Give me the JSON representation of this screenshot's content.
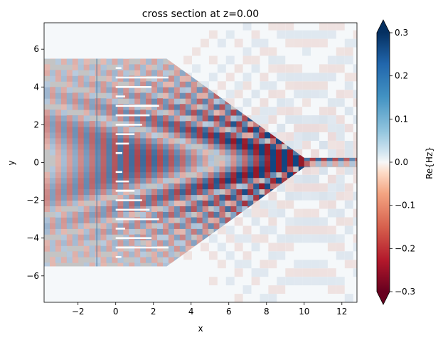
{
  "chart_data": {
    "type": "heatmap",
    "title": "cross section at z=0.00",
    "xlabel": "x",
    "ylabel": "y",
    "xlim": [
      -3.8,
      12.8
    ],
    "ylim": [
      -7.4,
      7.4
    ],
    "x_ticks": [
      -2,
      0,
      2,
      4,
      6,
      8,
      10,
      12
    ],
    "y_ticks": [
      -6,
      -4,
      -2,
      0,
      2,
      4,
      6
    ],
    "colorbar": {
      "label": "Re{Hz}",
      "range": [
        -0.3,
        0.3
      ],
      "ticks": [
        -0.3,
        -0.2,
        -0.1,
        0.0,
        0.1,
        0.2,
        0.3
      ],
      "extend": "both",
      "colormap": "RdBu"
    },
    "structure": {
      "slab": {
        "x": [
          -3.8,
          2.7
        ],
        "y": [
          -5.5,
          5.5
        ]
      },
      "taper": {
        "x": [
          2.7,
          10.0
        ],
        "y_wide": [
          -5.5,
          5.5
        ],
        "y_narrow": [
          -0.25,
          0.25
        ]
      },
      "waveguide": {
        "x": [
          10.0,
          12.8
        ],
        "y": [
          -0.25,
          0.25
        ]
      },
      "source_line_x": -1.0,
      "slits": [
        {
          "y": 5.0,
          "x": [
            0.0,
            0.3
          ]
        },
        {
          "y": 4.5,
          "x": [
            0.0,
            2.8
          ]
        },
        {
          "y": 4.0,
          "x": [
            0.0,
            1.9
          ]
        },
        {
          "y": 3.5,
          "x": [
            0.0,
            0.5
          ]
        },
        {
          "y": 3.0,
          "x": [
            0.0,
            2.3
          ]
        },
        {
          "y": 2.5,
          "x": [
            0.0,
            1.8
          ]
        },
        {
          "y": 2.0,
          "x": [
            0.0,
            1.4
          ]
        },
        {
          "y": 1.5,
          "x": [
            0.0,
            1.0
          ]
        },
        {
          "y": 1.0,
          "x": [
            0.0,
            0.7
          ]
        },
        {
          "y": 0.5,
          "x": [
            0.0,
            0.35
          ]
        },
        {
          "y": -0.5,
          "x": [
            0.0,
            0.35
          ]
        },
        {
          "y": -1.0,
          "x": [
            0.0,
            0.7
          ]
        },
        {
          "y": -1.5,
          "x": [
            0.0,
            1.0
          ]
        },
        {
          "y": -2.0,
          "x": [
            0.0,
            1.4
          ]
        },
        {
          "y": -2.5,
          "x": [
            0.0,
            1.8
          ]
        },
        {
          "y": -3.0,
          "x": [
            0.0,
            2.3
          ]
        },
        {
          "y": -3.5,
          "x": [
            0.0,
            0.5
          ]
        },
        {
          "y": -4.0,
          "x": [
            0.0,
            1.9
          ]
        },
        {
          "y": -4.5,
          "x": [
            0.0,
            2.8
          ]
        },
        {
          "y": -5.0,
          "x": [
            0.0,
            0.3
          ]
        }
      ]
    },
    "colors": {
      "structure": "#c4c4c4",
      "background": "#f5f8fa",
      "positive": "#0a3d6e",
      "negative": "#7a0a1e"
    }
  }
}
